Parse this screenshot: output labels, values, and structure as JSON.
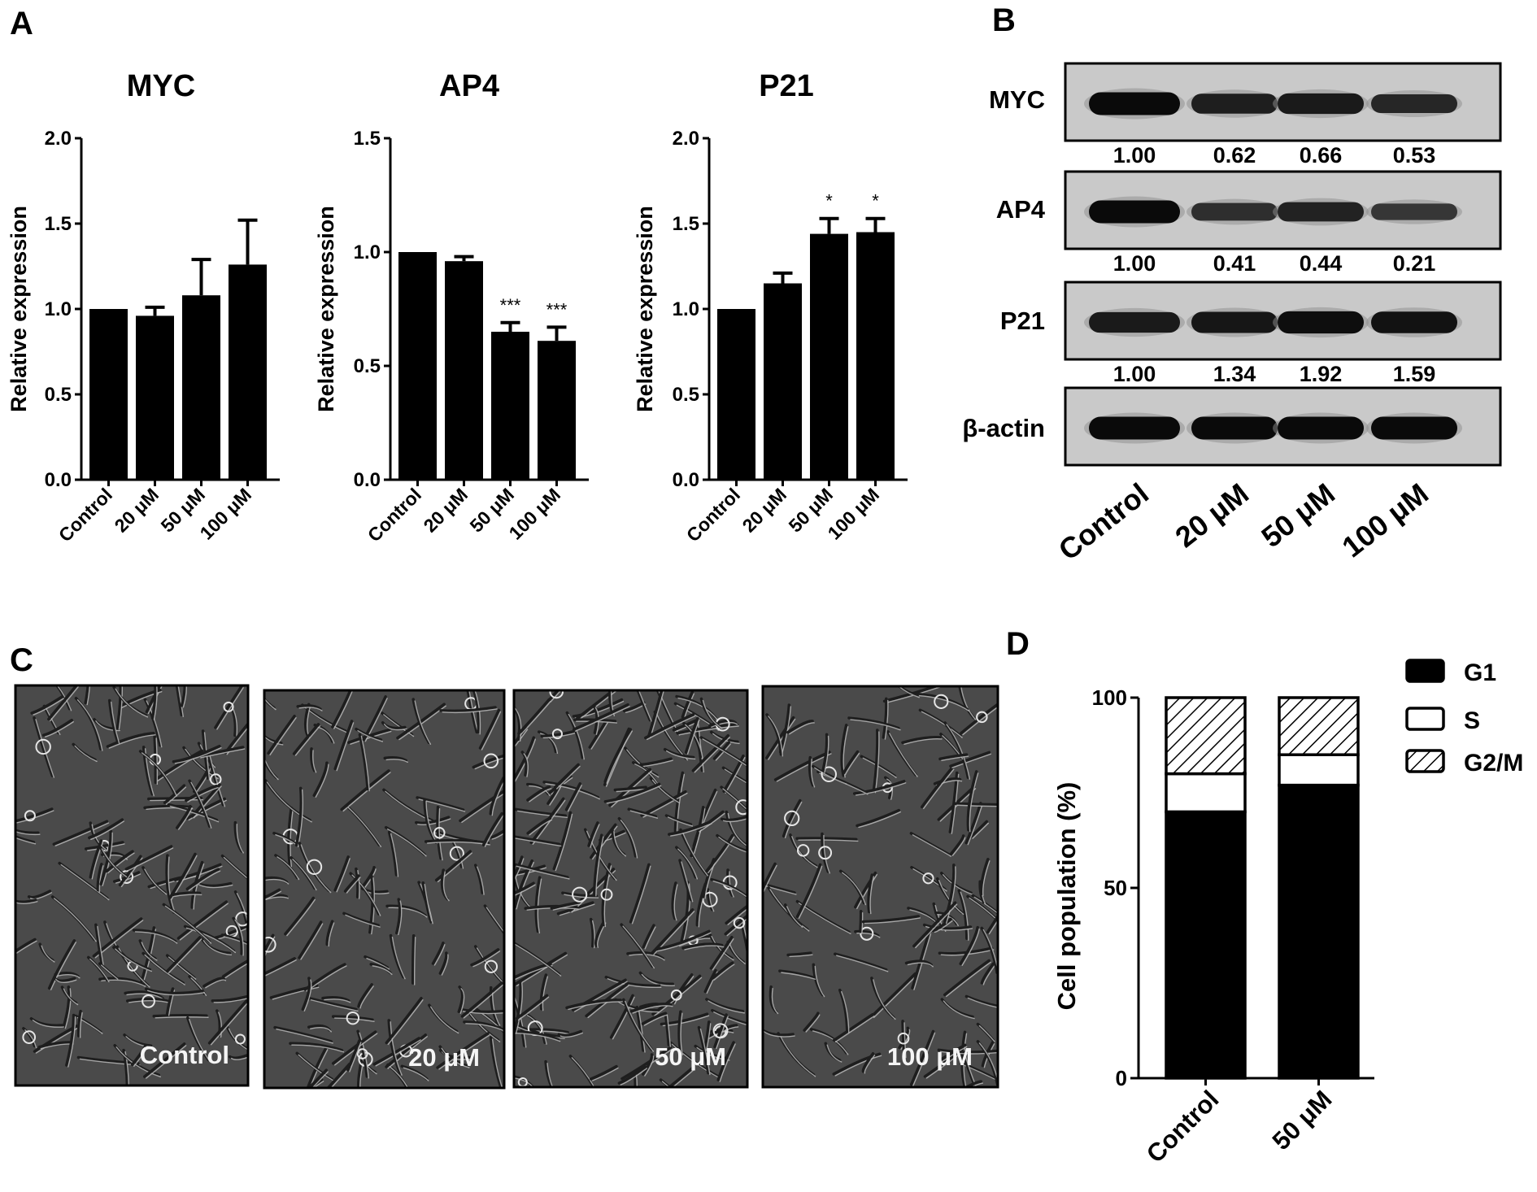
{
  "panels": {
    "A": "A",
    "B": "B",
    "C": "C",
    "D": "D"
  },
  "chart_data": [
    {
      "type": "bar",
      "title": "MYC",
      "ylabel": "Relative expression",
      "xlabel": "",
      "categories": [
        "Control",
        "20 μM",
        "50 μM",
        "100 μM"
      ],
      "values": [
        1.0,
        0.96,
        1.08,
        1.26
      ],
      "errors": [
        0.0,
        0.05,
        0.21,
        0.26
      ],
      "significance": [
        "",
        "",
        "",
        ""
      ],
      "ylim": [
        0,
        2.0
      ],
      "yticks": [
        "0.0",
        "0.5",
        "1.0",
        "1.5",
        "2.0"
      ]
    },
    {
      "type": "bar",
      "title": "AP4",
      "ylabel": "Relative expression",
      "xlabel": "",
      "categories": [
        "Control",
        "20 μM",
        "50 μM",
        "100 μM"
      ],
      "values": [
        1.0,
        0.96,
        0.65,
        0.61
      ],
      "errors": [
        0.0,
        0.02,
        0.04,
        0.06
      ],
      "significance": [
        "",
        "",
        "***",
        "***"
      ],
      "ylim": [
        0,
        1.5
      ],
      "yticks": [
        "0.0",
        "0.5",
        "1.0",
        "1.5"
      ]
    },
    {
      "type": "bar",
      "title": "P21",
      "ylabel": "Relative expression",
      "xlabel": "",
      "categories": [
        "Control",
        "20 μM",
        "50 μM",
        "100 μM"
      ],
      "values": [
        1.0,
        1.15,
        1.44,
        1.45
      ],
      "errors": [
        0.0,
        0.06,
        0.09,
        0.08
      ],
      "significance": [
        "",
        "",
        "*",
        "*"
      ],
      "ylim": [
        0,
        2.0
      ],
      "yticks": [
        "0.0",
        "0.5",
        "1.0",
        "1.5",
        "2.0"
      ]
    },
    {
      "type": "bar",
      "stacked": true,
      "ylabel": "Cell population (%)",
      "xlabel": "",
      "categories": [
        "Control",
        "50 μM"
      ],
      "series": [
        {
          "name": "G1",
          "values": [
            70,
            77
          ]
        },
        {
          "name": "S",
          "values": [
            10,
            8
          ]
        },
        {
          "name": "G2/M",
          "values": [
            20,
            15
          ]
        }
      ],
      "ylim": [
        0,
        100
      ],
      "yticks": [
        "0",
        "50",
        "100"
      ],
      "legend": "top-right"
    }
  ],
  "western_blot": {
    "categories": [
      "Control",
      "20 μM",
      "50 μM",
      "100 μM"
    ],
    "rows": [
      {
        "label": "MYC",
        "values": [
          "1.00",
          "0.62",
          "0.66",
          "0.53"
        ],
        "intensity": [
          1.0,
          0.75,
          0.8,
          0.65
        ]
      },
      {
        "label": "AP4",
        "values": [
          "1.00",
          "0.41",
          "0.44",
          "0.21"
        ],
        "intensity": [
          1.0,
          0.55,
          0.7,
          0.45
        ]
      },
      {
        "label": "P21",
        "values": [
          "1.00",
          "1.34",
          "1.92",
          "1.59"
        ],
        "intensity": [
          0.8,
          0.85,
          0.95,
          0.9
        ]
      },
      {
        "label": "β-actin",
        "values": [],
        "intensity": [
          1.0,
          1.0,
          1.0,
          1.0
        ]
      }
    ]
  },
  "micrographs": [
    "Control",
    "20 μM",
    "50 μM",
    "100 μM"
  ]
}
